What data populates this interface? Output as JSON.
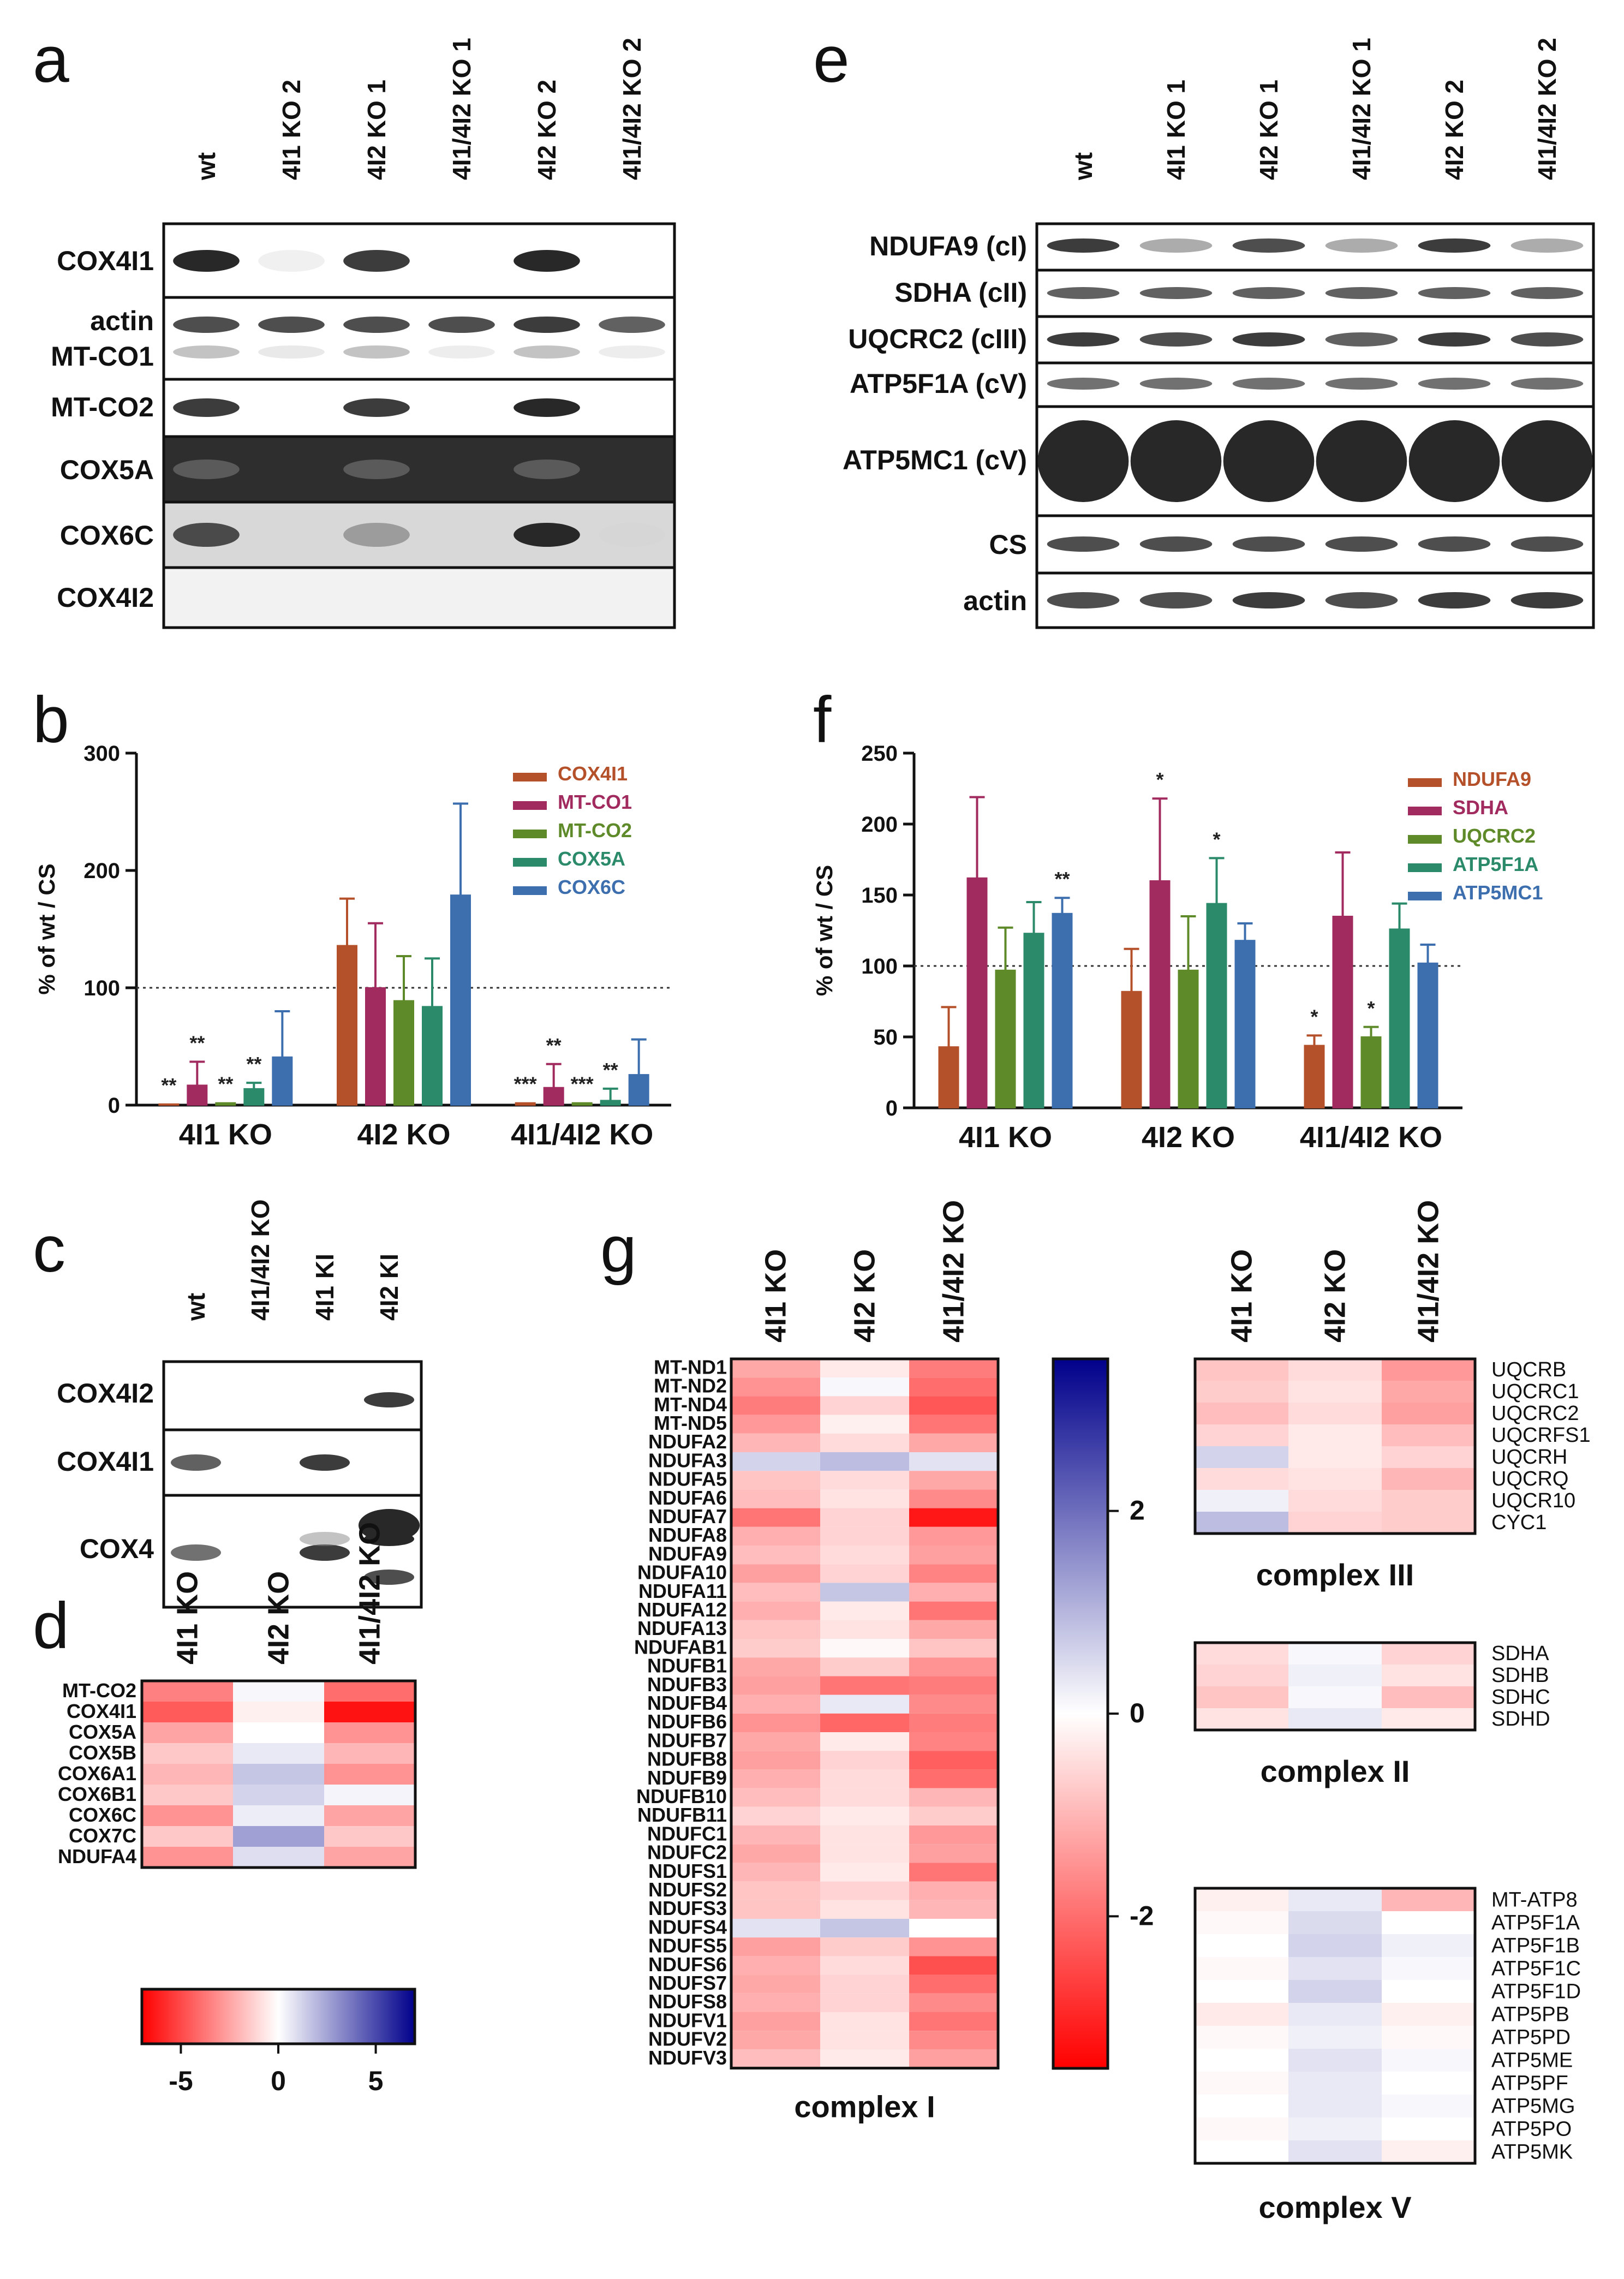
{
  "panels": {
    "a": {
      "letter": "a",
      "lanes": [
        "wt",
        "4I1 KO 2",
        "4I2 KO 1",
        "4I1/4I2 KO 1",
        "4I2 KO 2",
        "4I1/4I2 KO 2"
      ],
      "rows": [
        "COX4I1",
        "actin",
        "MT-CO1",
        "MT-CO2",
        "COX5A",
        "COX6C",
        "COX4I2"
      ]
    },
    "e": {
      "letter": "e",
      "lanes": [
        "wt",
        "4I1 KO 1",
        "4I2 KO 1",
        "4I1/4I2 KO 1",
        "4I2 KO 2",
        "4I1/4I2 KO 2"
      ],
      "rows": [
        "NDUFA9 (cI)",
        "SDHA (cII)",
        "UQCRC2 (cIII)",
        "ATP5F1A (cV)",
        "ATP5MC1 (cV)",
        "CS",
        "actin"
      ]
    },
    "c": {
      "letter": "c",
      "lanes": [
        "wt",
        "4I1/4I2 KO",
        "4I1 KI",
        "4I2 KI"
      ],
      "rows": [
        "COX4I2",
        "COX4I1",
        "COX4"
      ]
    },
    "d": {
      "letter": "d",
      "columns": [
        "4I1 KO",
        "4I2 KO",
        "4I1/4I2 KO"
      ],
      "rows": [
        "MT-CO2",
        "COX4I1",
        "COX5A",
        "COX5B",
        "COX6A1",
        "COX6B1",
        "COX6C",
        "COX7C",
        "NDUFA4"
      ],
      "values": [
        [
          -3.5,
          0.2,
          -4.0
        ],
        [
          -4.5,
          -0.4,
          -6.5
        ],
        [
          -2.5,
          0.0,
          -3.0
        ],
        [
          -1.5,
          0.6,
          -2.0
        ],
        [
          -2.0,
          1.6,
          -3.0
        ],
        [
          -1.5,
          1.2,
          0.3
        ],
        [
          -3.0,
          0.5,
          -2.5
        ],
        [
          -1.5,
          2.6,
          -1.5
        ],
        [
          -3.0,
          0.9,
          -2.5
        ]
      ],
      "scale_ticks": [
        "-5",
        "0",
        "5"
      ],
      "scale_range": [
        -7,
        7
      ]
    },
    "g": {
      "letter": "g",
      "columns": [
        "4I1 KO",
        "4I2 KO",
        "4I1/4I2 KO"
      ],
      "scale_ticks": [
        "2",
        "0",
        "-2"
      ],
      "scale_range": [
        -3.5,
        3.5
      ],
      "complex1": {
        "title": "complex I",
        "rows": [
          "MT-ND1",
          "MT-ND2",
          "MT-ND4",
          "MT-ND5",
          "NDUFA2",
          "NDUFA3",
          "NDUFA5",
          "NDUFA6",
          "NDUFA7",
          "NDUFA8",
          "NDUFA9",
          "NDUFA10",
          "NDUFA11",
          "NDUFA12",
          "NDUFA13",
          "NDUFAB1",
          "NDUFB1",
          "NDUFB3",
          "NDUFB4",
          "NDUFB6",
          "NDUFB7",
          "NDUFB8",
          "NDUFB9",
          "NDUFB10",
          "NDUFB11",
          "NDUFC1",
          "NDUFC2",
          "NDUFS1",
          "NDUFS2",
          "NDUFS3",
          "NDUFS4",
          "NDUFS5",
          "NDUFS6",
          "NDUFS7",
          "NDUFS8",
          "NDUFV1",
          "NDUFV2",
          "NDUFV3"
        ],
        "values": [
          [
            -1.2,
            -0.3,
            -1.8
          ],
          [
            -1.5,
            0.1,
            -2.0
          ],
          [
            -1.8,
            -0.6,
            -2.3
          ],
          [
            -1.4,
            -0.2,
            -1.9
          ],
          [
            -1.0,
            -0.5,
            -1.2
          ],
          [
            0.6,
            0.9,
            0.4
          ],
          [
            -0.8,
            -0.5,
            -1.2
          ],
          [
            -0.9,
            -0.4,
            -1.6
          ],
          [
            -1.9,
            -0.6,
            -3.2
          ],
          [
            -1.1,
            -0.6,
            -1.4
          ],
          [
            -0.9,
            -0.5,
            -1.3
          ],
          [
            -1.3,
            -0.6,
            -1.7
          ],
          [
            -0.9,
            0.8,
            -1.1
          ],
          [
            -1.1,
            -0.3,
            -1.9
          ],
          [
            -0.8,
            -0.4,
            -1.2
          ],
          [
            -0.7,
            -0.1,
            -0.8
          ],
          [
            -1.2,
            -0.7,
            -1.5
          ],
          [
            -1.3,
            -1.9,
            -1.8
          ],
          [
            -1.1,
            0.3,
            -1.6
          ],
          [
            -1.5,
            -2.1,
            -1.8
          ],
          [
            -1.2,
            -0.3,
            -1.7
          ],
          [
            -1.3,
            -0.6,
            -2.2
          ],
          [
            -1.1,
            -0.5,
            -2.0
          ],
          [
            -0.9,
            -0.5,
            -1.0
          ],
          [
            -0.6,
            -0.3,
            -0.7
          ],
          [
            -1.0,
            -0.4,
            -1.4
          ],
          [
            -1.2,
            -0.4,
            -1.3
          ],
          [
            -1.0,
            -0.3,
            -1.9
          ],
          [
            -0.8,
            -0.6,
            -1.1
          ],
          [
            -0.8,
            -0.4,
            -1.0
          ],
          [
            0.4,
            0.8,
            0.0
          ],
          [
            -1.3,
            -0.7,
            -1.5
          ],
          [
            -1.1,
            -0.5,
            -2.4
          ],
          [
            -1.2,
            -0.6,
            -2.0
          ],
          [
            -1.1,
            -0.6,
            -1.6
          ],
          [
            -1.3,
            -0.4,
            -1.9
          ],
          [
            -1.2,
            -0.4,
            -1.6
          ],
          [
            -0.9,
            -0.3,
            -1.3
          ]
        ]
      },
      "complex3": {
        "title": "complex III",
        "rows": [
          "UQCRB",
          "UQCRC1",
          "UQCRC2",
          "UQCRFS1",
          "UQCRH",
          "UQCRQ",
          "UQCR10",
          "CYC1"
        ],
        "values": [
          [
            -0.8,
            -0.5,
            -1.4
          ],
          [
            -0.7,
            -0.4,
            -1.2
          ],
          [
            -0.9,
            -0.5,
            -1.3
          ],
          [
            -0.6,
            -0.3,
            -0.9
          ],
          [
            0.6,
            -0.3,
            -0.6
          ],
          [
            -0.5,
            -0.4,
            -1.0
          ],
          [
            0.2,
            -0.5,
            -0.7
          ],
          [
            0.9,
            -0.6,
            -0.7
          ]
        ]
      },
      "complex2": {
        "title": "complex II",
        "rows": [
          "SDHA",
          "SDHB",
          "SDHC",
          "SDHD"
        ],
        "values": [
          [
            -0.5,
            0.1,
            -0.6
          ],
          [
            -0.6,
            0.2,
            -0.4
          ],
          [
            -0.8,
            0.1,
            -0.9
          ],
          [
            -0.4,
            0.3,
            -0.3
          ]
        ]
      },
      "complex5": {
        "title": "complex V",
        "rows": [
          "MT-ATP8",
          "ATP5F1A",
          "ATP5F1B",
          "ATP5F1C",
          "ATP5F1D",
          "ATP5PB",
          "ATP5PD",
          "ATP5ME",
          "ATP5PF",
          "ATP5MG",
          "ATP5PO",
          "ATP5MK"
        ],
        "values": [
          [
            -0.2,
            0.3,
            -1.0
          ],
          [
            -0.1,
            0.5,
            0.0
          ],
          [
            0.0,
            0.6,
            0.2
          ],
          [
            -0.1,
            0.4,
            0.1
          ],
          [
            0.0,
            0.6,
            0.0
          ],
          [
            -0.3,
            0.3,
            -0.2
          ],
          [
            -0.1,
            0.2,
            -0.1
          ],
          [
            0.0,
            0.4,
            0.1
          ],
          [
            -0.1,
            0.3,
            0.0
          ],
          [
            0.0,
            0.3,
            0.1
          ],
          [
            -0.1,
            0.2,
            0.0
          ],
          [
            0.0,
            0.4,
            -0.2
          ]
        ]
      }
    }
  },
  "chart_data": [
    {
      "panel": "b",
      "type": "bar",
      "categories": [
        "4I1 KO",
        "4I2 KO",
        "4I1/4I2 KO"
      ],
      "ylabel": "% of wt / CS",
      "ylim": [
        0,
        300
      ],
      "yticks": [
        0,
        100,
        200,
        300
      ],
      "reference_line": 100,
      "legend_position": "top-right",
      "series": [
        {
          "name": "COX4I1",
          "color": "#b5512a",
          "values": [
            1,
            136,
            2
          ],
          "errors": [
            0,
            40,
            0
          ],
          "sig": [
            "**",
            "",
            "***"
          ]
        },
        {
          "name": "MT-CO1",
          "color": "#a12a5e",
          "values": [
            17,
            100,
            15
          ],
          "errors": [
            20,
            55,
            20
          ],
          "sig": [
            "**",
            "",
            "**"
          ]
        },
        {
          "name": "MT-CO2",
          "color": "#5f8a2a",
          "values": [
            2,
            89,
            2
          ],
          "errors": [
            0,
            38,
            0
          ],
          "sig": [
            "**",
            "",
            "***"
          ]
        },
        {
          "name": "COX5A",
          "color": "#2a8a6a",
          "values": [
            14,
            84,
            4
          ],
          "errors": [
            5,
            41,
            10
          ],
          "sig": [
            "**",
            "",
            "**"
          ]
        },
        {
          "name": "COX6C",
          "color": "#3d6fae",
          "values": [
            41,
            179,
            26
          ],
          "errors": [
            39,
            78,
            30
          ],
          "sig": [
            "",
            "",
            ""
          ]
        }
      ]
    },
    {
      "panel": "f",
      "type": "bar",
      "categories": [
        "4I1 KO",
        "4I2 KO",
        "4I1/4I2 KO"
      ],
      "ylabel": "% of wt / CS",
      "ylim": [
        0,
        250
      ],
      "yticks": [
        0,
        50,
        100,
        150,
        200,
        250
      ],
      "reference_line": 100,
      "legend_position": "top-right",
      "series": [
        {
          "name": "NDUFA9",
          "color": "#b5512a",
          "values": [
            43,
            82,
            44
          ],
          "errors": [
            28,
            30,
            7
          ],
          "sig": [
            "",
            "",
            "*"
          ]
        },
        {
          "name": "SDHA",
          "color": "#a12a5e",
          "values": [
            162,
            160,
            135
          ],
          "errors": [
            57,
            58,
            45
          ],
          "sig": [
            "",
            "*",
            ""
          ]
        },
        {
          "name": "UQCRC2",
          "color": "#5f8a2a",
          "values": [
            97,
            97,
            50
          ],
          "errors": [
            30,
            38,
            7
          ],
          "sig": [
            "",
            "",
            "*"
          ]
        },
        {
          "name": "ATP5F1A",
          "color": "#2a8a6a",
          "values": [
            123,
            144,
            126
          ],
          "errors": [
            22,
            32,
            18
          ],
          "sig": [
            "",
            "*",
            ""
          ]
        },
        {
          "name": "ATP5MC1",
          "color": "#3d6fae",
          "values": [
            137,
            118,
            102
          ],
          "errors": [
            11,
            12,
            13
          ],
          "sig": [
            "**",
            "",
            ""
          ]
        }
      ]
    }
  ]
}
